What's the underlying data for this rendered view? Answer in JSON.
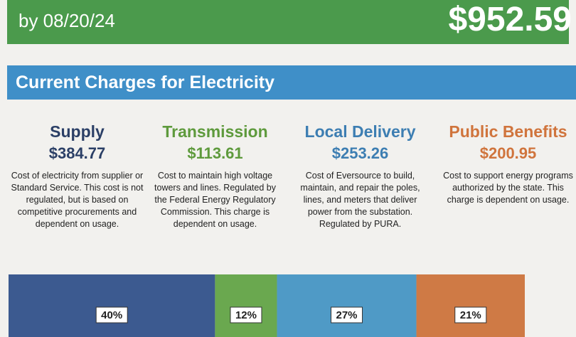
{
  "header": {
    "due_date": "by 08/20/24",
    "amount_due": "$952.59"
  },
  "section_title": "Current Charges for Electricity",
  "charges": [
    {
      "title": "Supply",
      "amount": "$384.77",
      "color": "#2b3f66",
      "description": "Cost of electricity from supplier or Standard Service. This cost is not regulated, but is based on competitive procurements and dependent on usage."
    },
    {
      "title": "Transmission",
      "amount": "$113.61",
      "color": "#5e9a3c",
      "description": "Cost to maintain high voltage towers and lines. Regulated by the Federal Energy Regulatory Commission. This charge is dependent on usage."
    },
    {
      "title": "Local Delivery",
      "amount": "$253.26",
      "color": "#3d7eb2",
      "description": "Cost of Eversource to build, maintain, and repair the poles, lines, and meters that deliver power from the substation. Regulated by PURA."
    },
    {
      "title": "Public Benefits",
      "amount": "$200.95",
      "color": "#d0743c",
      "description": "Cost to support energy programs authorized by the state. This charge is dependent on usage."
    }
  ],
  "breakdown": {
    "values": [
      40,
      12,
      27,
      21
    ],
    "value_labels": [
      "40%",
      "12%",
      "27%",
      "21%"
    ],
    "colors": [
      "#3c5a90",
      "#6aa84f",
      "#4f9ac6",
      "#cf7a45"
    ]
  }
}
